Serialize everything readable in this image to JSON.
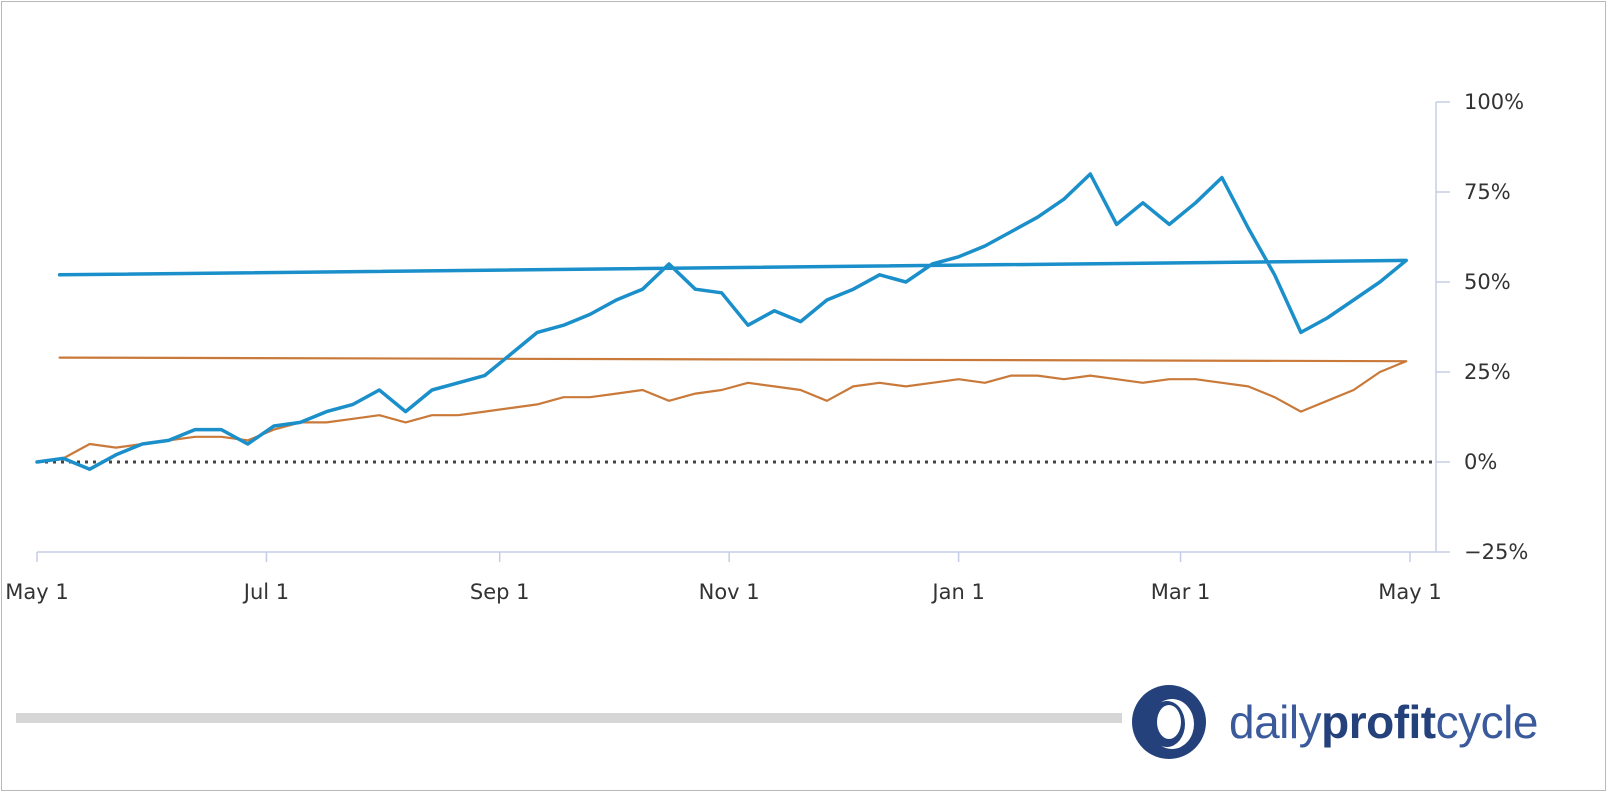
{
  "chart_data": {
    "type": "line",
    "xlabel": "",
    "ylabel": "",
    "x_tick_labels": [
      "May 1",
      "Jul 1",
      "Sep 1",
      "Nov 1",
      "Jan 1",
      "Mar 1",
      "May 1"
    ],
    "y_tick_labels": [
      "100%",
      "75%",
      "50%",
      "25%",
      "0%",
      "−25%"
    ],
    "y_ticks": [
      100,
      75,
      50,
      25,
      0,
      -25
    ],
    "ylim": [
      -25,
      100
    ],
    "y_axis_position": "right",
    "reference_line": {
      "y": 0,
      "style": "dotted"
    },
    "grid": false,
    "legend": "none",
    "series": [
      {
        "color": "#1a8fca",
        "points": [
          [
            "May 1",
            0
          ],
          [
            "May 8",
            1
          ],
          [
            "May 15",
            -2
          ],
          [
            "May 22",
            2
          ],
          [
            "May 29",
            5
          ],
          [
            "Jun 5",
            6
          ],
          [
            "Jun 12",
            9
          ],
          [
            "Jun 19",
            9
          ],
          [
            "Jun 26",
            5
          ],
          [
            "Jul 3",
            10
          ],
          [
            "Jul 10",
            11
          ],
          [
            "Jul 17",
            14
          ],
          [
            "Jul 24",
            16
          ],
          [
            "Jul 31",
            20
          ],
          [
            "Aug 7",
            14
          ],
          [
            "Aug 14",
            20
          ],
          [
            "Aug 21",
            22
          ],
          [
            "Aug 28",
            24
          ],
          [
            "Sep 4",
            30
          ],
          [
            "Sep 11",
            36
          ],
          [
            "Sep 18",
            38
          ],
          [
            "Sep 25",
            41
          ],
          [
            "Oct 2",
            45
          ],
          [
            "Oct 9",
            48
          ],
          [
            "Oct 16",
            55
          ],
          [
            "Oct 23",
            48
          ],
          [
            "Oct 30",
            47
          ],
          [
            "Nov 6",
            38
          ],
          [
            "Nov 13",
            42
          ],
          [
            "Nov 20",
            39
          ],
          [
            "Nov 27",
            45
          ],
          [
            "Dec 4",
            48
          ],
          [
            "Dec 11",
            52
          ],
          [
            "Dec 18",
            50
          ],
          [
            "Dec 25",
            55
          ],
          [
            "Jan 1",
            57
          ],
          [
            "Jan 8",
            60
          ],
          [
            "Jan 15",
            64
          ],
          [
            "Jan 22",
            68
          ],
          [
            "Jan 29",
            73
          ],
          [
            "Feb 5",
            80
          ],
          [
            "Feb 12",
            66
          ],
          [
            "Feb 19",
            72
          ],
          [
            "Feb 26",
            66
          ],
          [
            "Mar 5",
            72
          ],
          [
            "Mar 12",
            79
          ],
          [
            "Mar 19",
            65
          ],
          [
            "Mar 26",
            52
          ],
          [
            "Apr 2",
            36
          ],
          [
            "Apr 9",
            40
          ],
          [
            "Apr 16",
            45
          ],
          [
            "Apr 23",
            50
          ],
          [
            "Apr 30",
            56
          ],
          [
            "May 7",
            52
          ]
        ]
      },
      {
        "color": "#c97a3a",
        "points": [
          [
            "May 1",
            0
          ],
          [
            "May 8",
            1
          ],
          [
            "May 15",
            5
          ],
          [
            "May 22",
            4
          ],
          [
            "May 29",
            5
          ],
          [
            "Jun 5",
            6
          ],
          [
            "Jun 12",
            7
          ],
          [
            "Jun 19",
            7
          ],
          [
            "Jun 26",
            6
          ],
          [
            "Jul 3",
            9
          ],
          [
            "Jul 10",
            11
          ],
          [
            "Jul 17",
            11
          ],
          [
            "Jul 24",
            12
          ],
          [
            "Jul 31",
            13
          ],
          [
            "Aug 7",
            11
          ],
          [
            "Aug 14",
            13
          ],
          [
            "Aug 21",
            13
          ],
          [
            "Aug 28",
            14
          ],
          [
            "Sep 4",
            15
          ],
          [
            "Sep 11",
            16
          ],
          [
            "Sep 18",
            18
          ],
          [
            "Sep 25",
            18
          ],
          [
            "Oct 2",
            19
          ],
          [
            "Oct 9",
            20
          ],
          [
            "Oct 16",
            17
          ],
          [
            "Oct 23",
            19
          ],
          [
            "Oct 30",
            20
          ],
          [
            "Nov 6",
            22
          ],
          [
            "Nov 13",
            21
          ],
          [
            "Nov 20",
            20
          ],
          [
            "Nov 27",
            17
          ],
          [
            "Dec 4",
            21
          ],
          [
            "Dec 11",
            22
          ],
          [
            "Dec 18",
            21
          ],
          [
            "Dec 25",
            22
          ],
          [
            "Jan 1",
            23
          ],
          [
            "Jan 8",
            22
          ],
          [
            "Jan 15",
            24
          ],
          [
            "Jan 22",
            24
          ],
          [
            "Jan 29",
            23
          ],
          [
            "Feb 5",
            24
          ],
          [
            "Feb 12",
            23
          ],
          [
            "Feb 19",
            22
          ],
          [
            "Feb 26",
            23
          ],
          [
            "Mar 5",
            23
          ],
          [
            "Mar 12",
            22
          ],
          [
            "Mar 19",
            21
          ],
          [
            "Mar 26",
            18
          ],
          [
            "Apr 2",
            14
          ],
          [
            "Apr 9",
            17
          ],
          [
            "Apr 16",
            20
          ],
          [
            "Apr 23",
            25
          ],
          [
            "Apr 30",
            28
          ],
          [
            "May 7",
            29
          ]
        ]
      }
    ]
  },
  "colors": {
    "axis": "#c5cde6",
    "zero_line": "#444444",
    "footer_bar": "#d6d6d6",
    "brand_dark": "#24417c",
    "brand_light": "#3a5a9c"
  },
  "logo": {
    "icon": "ring-logo-icon",
    "text_regular_1": "daily",
    "text_bold": "profit",
    "text_regular_2": "cycle"
  }
}
